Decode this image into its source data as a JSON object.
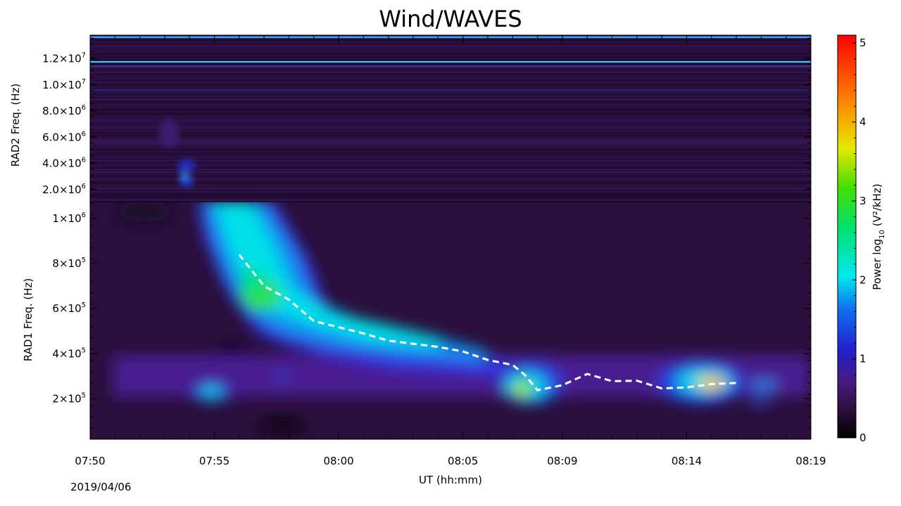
{
  "chart_data": {
    "type": "heatmap",
    "title": "Wind/WAVES",
    "xlabel": "UT (hh:mm)",
    "date": "2019/04/06",
    "x_ticks": [
      "07:50",
      "07:55",
      "08:00",
      "08:05",
      "08:09",
      "08:14",
      "08:19"
    ],
    "panels": [
      {
        "name": "RAD2",
        "ylabel": "RAD2 Freq. (Hz)",
        "y_ticks": [
          {
            "value": 2000000,
            "mant": "2.0",
            "exp": "6"
          },
          {
            "value": 4000000,
            "mant": "4.0",
            "exp": "6"
          },
          {
            "value": 6000000,
            "mant": "6.0",
            "exp": "6"
          },
          {
            "value": 8000000,
            "mant": "8.0",
            "exp": "6"
          },
          {
            "value": 10000000,
            "mant": "1.0",
            "exp": "7"
          },
          {
            "value": 12000000,
            "mant": "1.2",
            "exp": "7"
          }
        ],
        "ylim": [
          1075000,
          13800000
        ]
      },
      {
        "name": "RAD1",
        "ylabel": "RAD1 Freq. (Hz)",
        "y_ticks": [
          {
            "value": 200000,
            "mant": "2",
            "exp": "5"
          },
          {
            "value": 400000,
            "mant": "4",
            "exp": "5"
          },
          {
            "value": 600000,
            "mant": "6",
            "exp": "5"
          },
          {
            "value": 800000,
            "mant": "8",
            "exp": "5"
          },
          {
            "value": 1000000,
            "mant": "1",
            "exp": "6"
          }
        ],
        "ylim": [
          20000,
          1075000
        ]
      }
    ],
    "colorbar": {
      "label_pre": "Power log",
      "label_sub": "10",
      "label_post": " (V²/kHz)",
      "ticks": [
        "0",
        "1",
        "2",
        "3",
        "4",
        "5"
      ],
      "range": [
        0,
        5.1
      ]
    },
    "tracked_drift": {
      "name": "dashed white trace",
      "points": [
        {
          "t": "07:56",
          "f": 840000
        },
        {
          "t": "07:57",
          "f": 700000
        },
        {
          "t": "07:58",
          "f": 640000
        },
        {
          "t": "07:59",
          "f": 545000
        },
        {
          "t": "08:01",
          "f": 490000
        },
        {
          "t": "08:02",
          "f": 458000
        },
        {
          "t": "08:04",
          "f": 430000
        },
        {
          "t": "08:05",
          "f": 410000
        },
        {
          "t": "08:06",
          "f": 372000
        },
        {
          "t": "08:07",
          "f": 350000
        },
        {
          "t": "08:07.5",
          "f": 305000
        },
        {
          "t": "08:08",
          "f": 238000
        },
        {
          "t": "08:09",
          "f": 260000
        },
        {
          "t": "08:10",
          "f": 310000
        },
        {
          "t": "08:11",
          "f": 278000
        },
        {
          "t": "08:12",
          "f": 280000
        },
        {
          "t": "08:13",
          "f": 246000
        },
        {
          "t": "08:14",
          "f": 250000
        },
        {
          "t": "08:15",
          "f": 265000
        },
        {
          "t": "08:16",
          "f": 270000
        }
      ]
    },
    "radio_bursts": [
      {
        "t_start": "07:54",
        "t_end": "07:56",
        "f_low": 20000,
        "f_high": 13800000,
        "peak_power": 2.2
      },
      {
        "t_start": "07:55",
        "t_end": "08:06",
        "f_low": 350000,
        "f_high": 1075000,
        "peak_power": 3.2
      },
      {
        "t": "07:55",
        "f": 220000,
        "peak_power": 2.4
      },
      {
        "t": "08:08",
        "f": 230000,
        "peak_power": 3.8
      },
      {
        "t": "08:15",
        "f": 265000,
        "peak_power": 4.3
      }
    ],
    "colors": {
      "background": "#2a0f3c",
      "trace": "#ffffff"
    }
  }
}
